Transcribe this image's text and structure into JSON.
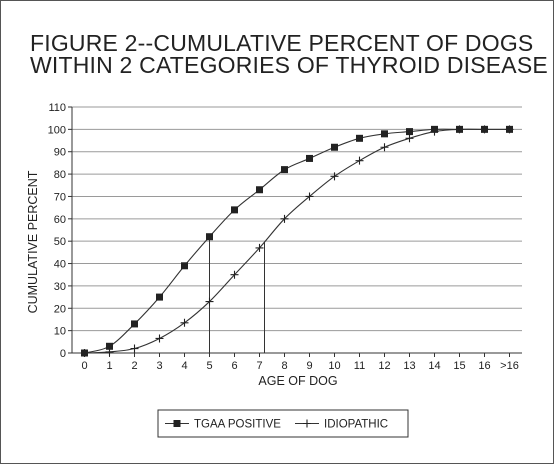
{
  "chart_data": {
    "type": "line",
    "title_line1": "FIGURE 2--CUMULATIVE PERCENT OF DOGS",
    "title_line2": "WITHIN 2 CATEGORIES OF THYROID DISEASE",
    "xlabel": "AGE OF DOG",
    "ylabel": "CUMULATIVE PERCENT",
    "categories": [
      "0",
      "1",
      "2",
      "3",
      "4",
      "5",
      "6",
      "7",
      "8",
      "9",
      "10",
      "11",
      "12",
      "13",
      "14",
      "15",
      "16",
      ">16"
    ],
    "yticks": [
      "0",
      "10",
      "20",
      "30",
      "40",
      "50",
      "60",
      "70",
      "80",
      "90",
      "100",
      "110"
    ],
    "ylim": [
      0,
      110
    ],
    "grid": "horizontal",
    "legend_position": "bottom",
    "series": [
      {
        "name": "TGAA POSITIVE",
        "marker": "square",
        "values": [
          0,
          3,
          13,
          25,
          39,
          52,
          64,
          73,
          82,
          87,
          92,
          96,
          98,
          99,
          100,
          100,
          100,
          100
        ]
      },
      {
        "name": "IDIOPATHIC",
        "marker": "plus",
        "values": [
          0,
          0.5,
          2,
          6.5,
          13.5,
          23,
          35,
          47,
          60,
          70,
          79,
          86,
          92,
          96,
          99,
          100,
          100,
          100
        ]
      }
    ],
    "reference_lines_x": [
      5,
      7.2
    ]
  },
  "colors": {
    "line": "#333333",
    "grid": "#9a9a9a",
    "axis": "#333333"
  }
}
